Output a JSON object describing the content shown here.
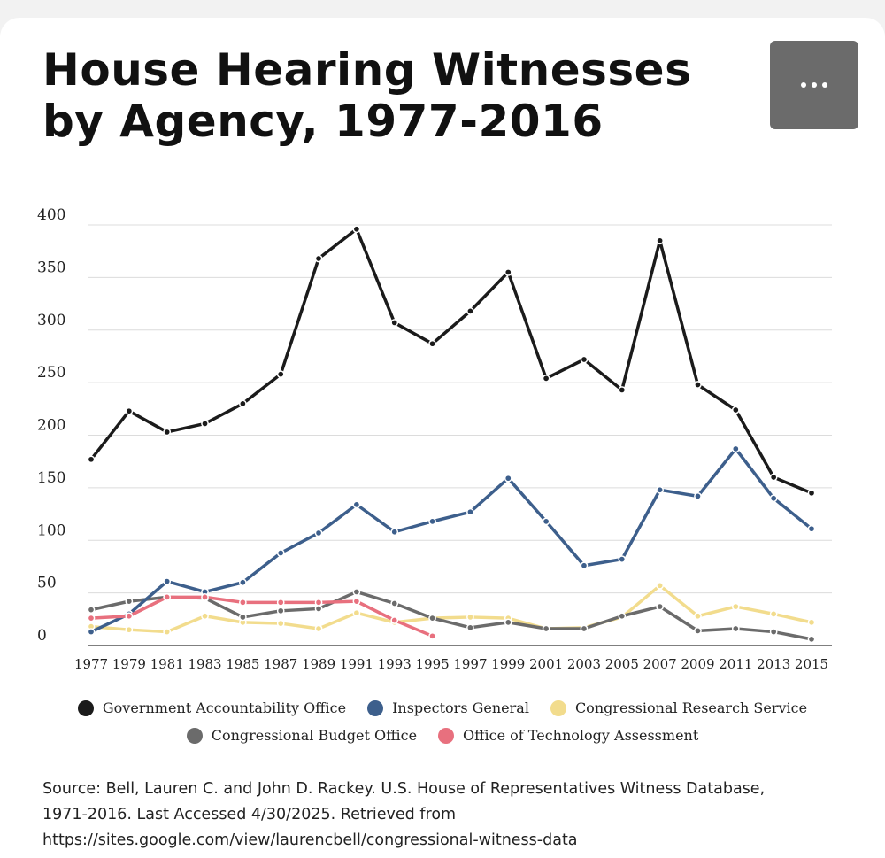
{
  "title": "House Hearing Witnesses by Agency, 1977-2016",
  "menu": {
    "icon": "more-horizontal-icon"
  },
  "source": {
    "line1": "Source: Bell, Lauren C. and John D. Rackey. U.S. House of Representatives Witness Database,",
    "line2": "1971-2016. Last Accessed 4/30/2025. Retrieved from",
    "line3": "https://sites.google.com/view/laurencbell/congressional-witness-data"
  },
  "chart_data": {
    "type": "line",
    "x": [
      "1977",
      "1979",
      "1981",
      "1983",
      "1985",
      "1987",
      "1989",
      "1991",
      "1993",
      "1995",
      "1997",
      "1999",
      "2001",
      "2003",
      "2005",
      "2007",
      "2009",
      "2011",
      "2013",
      "2015"
    ],
    "ylim": [
      0,
      400
    ],
    "yticks": [
      "0",
      "50",
      "100",
      "150",
      "200",
      "250",
      "300",
      "350",
      "400"
    ],
    "grid": true,
    "legend_position": "bottom",
    "series": [
      {
        "name": "Government Accountability Office",
        "color": "#1b1b1b",
        "values": [
          177,
          223,
          203,
          211,
          230,
          258,
          368,
          396,
          307,
          287,
          318,
          355,
          254,
          272,
          243,
          385,
          248,
          224,
          160,
          145
        ]
      },
      {
        "name": "Inspectors General",
        "color": "#3d5f8c",
        "values": [
          13,
          30,
          61,
          51,
          60,
          88,
          107,
          134,
          108,
          118,
          127,
          159,
          118,
          76,
          82,
          148,
          142,
          187,
          140,
          111
        ]
      },
      {
        "name": "Congressional Research Service",
        "color": "#f2dc8d",
        "values": [
          18,
          15,
          13,
          28,
          22,
          21,
          16,
          31,
          22,
          26,
          27,
          26,
          16,
          17,
          27,
          57,
          28,
          37,
          30,
          22
        ]
      },
      {
        "name": "Congressional Budget Office",
        "color": "#6b6b6b",
        "values": [
          34,
          42,
          46,
          45,
          27,
          33,
          35,
          51,
          40,
          26,
          17,
          22,
          16,
          16,
          28,
          37,
          14,
          16,
          13,
          6
        ]
      },
      {
        "name": "Office of Technology Assessment",
        "color": "#e8707e",
        "values": [
          26,
          28,
          46,
          46,
          41,
          41,
          41,
          42,
          24,
          9,
          null,
          null,
          null,
          null,
          null,
          null,
          null,
          null,
          null,
          null
        ]
      }
    ]
  }
}
